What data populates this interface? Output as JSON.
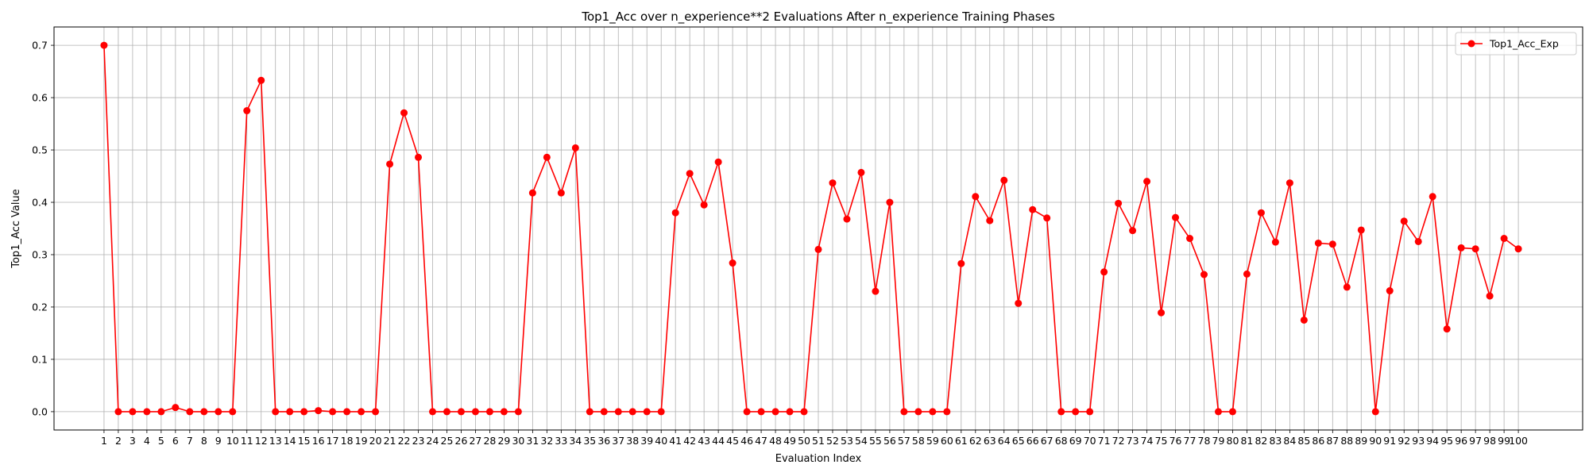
{
  "chart_data": {
    "type": "line",
    "title": "Top1_Acc over n_experience**2 Evaluations After n_experience Training Phases",
    "xlabel": "Evaluation Index",
    "ylabel": "Top1_Acc Value",
    "x": [
      1,
      2,
      3,
      4,
      5,
      6,
      7,
      8,
      9,
      10,
      11,
      12,
      13,
      14,
      15,
      16,
      17,
      18,
      19,
      20,
      21,
      22,
      23,
      24,
      25,
      26,
      27,
      28,
      29,
      30,
      31,
      32,
      33,
      34,
      35,
      36,
      37,
      38,
      39,
      40,
      41,
      42,
      43,
      44,
      45,
      46,
      47,
      48,
      49,
      50,
      51,
      52,
      53,
      54,
      55,
      56,
      57,
      58,
      59,
      60,
      61,
      62,
      63,
      64,
      65,
      66,
      67,
      68,
      69,
      70,
      71,
      72,
      73,
      74,
      75,
      76,
      77,
      78,
      79,
      80,
      81,
      82,
      83,
      84,
      85,
      86,
      87,
      88,
      89,
      90,
      91,
      92,
      93,
      94,
      95,
      96,
      97,
      98,
      99,
      100
    ],
    "xlim": [
      -2.5,
      104.5
    ],
    "ylim": [
      -0.035,
      0.735
    ],
    "yticks": [
      0.0,
      0.1,
      0.2,
      0.3,
      0.4,
      0.5,
      0.6,
      0.7
    ],
    "ytick_labels": [
      "0.0",
      "0.1",
      "0.2",
      "0.3",
      "0.4",
      "0.5",
      "0.6",
      "0.7"
    ],
    "grid": true,
    "legend_position": "top-right",
    "series": [
      {
        "name": "Top1_Acc_Exp",
        "color": "#ff0000",
        "marker": "circle",
        "values": [
          0.7,
          0.0,
          0.0,
          0.0,
          0.0,
          0.008,
          0.0,
          0.0,
          0.0,
          0.0,
          0.575,
          0.633,
          0.0,
          0.0,
          0.0,
          0.002,
          0.0,
          0.0,
          0.0,
          0.0,
          0.473,
          0.571,
          0.486,
          0.0,
          0.0,
          0.0,
          0.0,
          0.0,
          0.0,
          0.0,
          0.418,
          0.486,
          0.418,
          0.504,
          0.0,
          0.0,
          0.0,
          0.0,
          0.0,
          0.0,
          0.38,
          0.455,
          0.395,
          0.477,
          0.284,
          0.0,
          0.0,
          0.0,
          0.0,
          0.0,
          0.31,
          0.437,
          0.368,
          0.457,
          0.23,
          0.4,
          0.0,
          0.0,
          0.0,
          0.0,
          0.283,
          0.411,
          0.365,
          0.442,
          0.207,
          0.386,
          0.37,
          0.0,
          0.0,
          0.0,
          0.267,
          0.398,
          0.346,
          0.44,
          0.189,
          0.371,
          0.331,
          0.262,
          0.0,
          0.0,
          0.263,
          0.38,
          0.324,
          0.437,
          0.175,
          0.322,
          0.32,
          0.238,
          0.347,
          0.0,
          0.231,
          0.364,
          0.325,
          0.411,
          0.158,
          0.313,
          0.311,
          0.221,
          0.331,
          0.311
        ]
      }
    ]
  }
}
